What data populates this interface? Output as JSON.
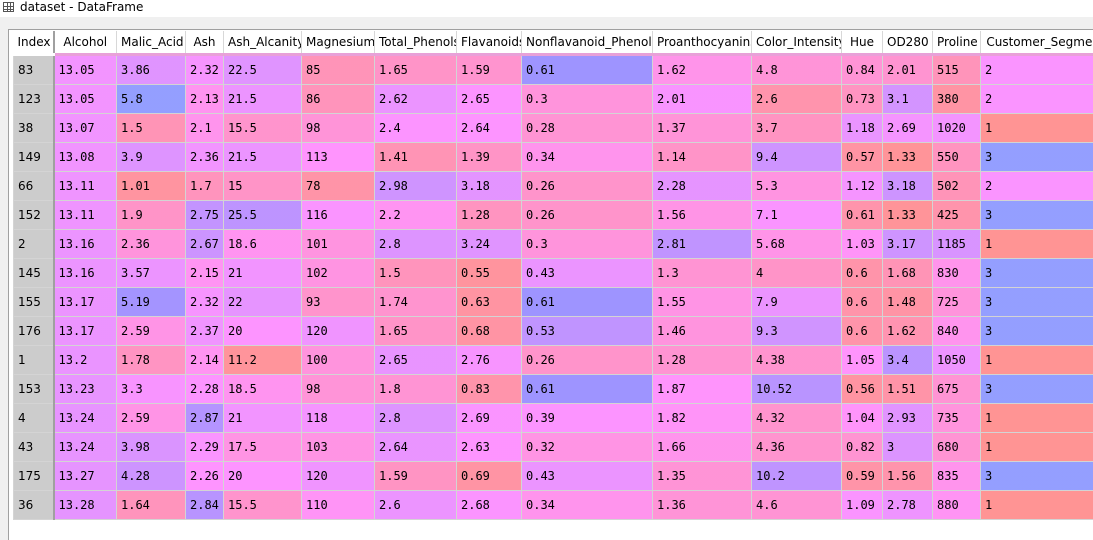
{
  "window": {
    "title": "dataset - DataFrame",
    "icon": "table-icon"
  },
  "table": {
    "index_header": "Index",
    "sorted_column": "Alcohol",
    "columns": [
      "Alcohol",
      "Malic_Acid",
      "Ash",
      "Ash_Alcanity",
      "Magnesium",
      "Total_Phenols",
      "Flavanoids",
      "Nonflavanoid_Phenols",
      "Proanthocyanins",
      "Color_Intensity",
      "Hue",
      "OD280",
      "Proline",
      "Customer_Segment"
    ],
    "rows": [
      {
        "index": "83",
        "values": [
          "13.05",
          "3.86",
          "2.32",
          "22.5",
          "85",
          "1.65",
          "1.59",
          "0.61",
          "1.62",
          "4.8",
          "0.84",
          "2.01",
          "515",
          "2"
        ]
      },
      {
        "index": "123",
        "values": [
          "13.05",
          "5.8",
          "2.13",
          "21.5",
          "86",
          "2.62",
          "2.65",
          "0.3",
          "2.01",
          "2.6",
          "0.73",
          "3.1",
          "380",
          "2"
        ]
      },
      {
        "index": "38",
        "values": [
          "13.07",
          "1.5",
          "2.1",
          "15.5",
          "98",
          "2.4",
          "2.64",
          "0.28",
          "1.37",
          "3.7",
          "1.18",
          "2.69",
          "1020",
          "1"
        ]
      },
      {
        "index": "149",
        "values": [
          "13.08",
          "3.9",
          "2.36",
          "21.5",
          "113",
          "1.41",
          "1.39",
          "0.34",
          "1.14",
          "9.4",
          "0.57",
          "1.33",
          "550",
          "3"
        ]
      },
      {
        "index": "66",
        "values": [
          "13.11",
          "1.01",
          "1.7",
          "15",
          "78",
          "2.98",
          "3.18",
          "0.26",
          "2.28",
          "5.3",
          "1.12",
          "3.18",
          "502",
          "2"
        ]
      },
      {
        "index": "152",
        "values": [
          "13.11",
          "1.9",
          "2.75",
          "25.5",
          "116",
          "2.2",
          "1.28",
          "0.26",
          "1.56",
          "7.1",
          "0.61",
          "1.33",
          "425",
          "3"
        ]
      },
      {
        "index": "2",
        "values": [
          "13.16",
          "2.36",
          "2.67",
          "18.6",
          "101",
          "2.8",
          "3.24",
          "0.3",
          "2.81",
          "5.68",
          "1.03",
          "3.17",
          "1185",
          "1"
        ]
      },
      {
        "index": "145",
        "values": [
          "13.16",
          "3.57",
          "2.15",
          "21",
          "102",
          "1.5",
          "0.55",
          "0.43",
          "1.3",
          "4",
          "0.6",
          "1.68",
          "830",
          "3"
        ]
      },
      {
        "index": "155",
        "values": [
          "13.17",
          "5.19",
          "2.32",
          "22",
          "93",
          "1.74",
          "0.63",
          "0.61",
          "1.55",
          "7.9",
          "0.6",
          "1.48",
          "725",
          "3"
        ]
      },
      {
        "index": "176",
        "values": [
          "13.17",
          "2.59",
          "2.37",
          "20",
          "120",
          "1.65",
          "0.68",
          "0.53",
          "1.46",
          "9.3",
          "0.6",
          "1.62",
          "840",
          "3"
        ]
      },
      {
        "index": "1",
        "values": [
          "13.2",
          "1.78",
          "2.14",
          "11.2",
          "100",
          "2.65",
          "2.76",
          "0.26",
          "1.28",
          "4.38",
          "1.05",
          "3.4",
          "1050",
          "1"
        ]
      },
      {
        "index": "153",
        "values": [
          "13.23",
          "3.3",
          "2.28",
          "18.5",
          "98",
          "1.8",
          "0.83",
          "0.61",
          "1.87",
          "10.52",
          "0.56",
          "1.51",
          "675",
          "3"
        ]
      },
      {
        "index": "4",
        "values": [
          "13.24",
          "2.59",
          "2.87",
          "21",
          "118",
          "2.8",
          "2.69",
          "0.39",
          "1.82",
          "4.32",
          "1.04",
          "2.93",
          "735",
          "1"
        ]
      },
      {
        "index": "43",
        "values": [
          "13.24",
          "3.98",
          "2.29",
          "17.5",
          "103",
          "2.64",
          "2.63",
          "0.32",
          "1.66",
          "4.36",
          "0.82",
          "3",
          "680",
          "1"
        ]
      },
      {
        "index": "175",
        "values": [
          "13.27",
          "4.28",
          "2.26",
          "20",
          "120",
          "1.59",
          "0.69",
          "0.43",
          "1.35",
          "10.2",
          "0.59",
          "1.56",
          "835",
          "3"
        ]
      },
      {
        "index": "36",
        "values": [
          "13.28",
          "1.64",
          "2.84",
          "15.5",
          "110",
          "2.6",
          "2.68",
          "0.34",
          "1.36",
          "4.6",
          "1.09",
          "2.78",
          "880",
          "1"
        ]
      }
    ]
  }
}
